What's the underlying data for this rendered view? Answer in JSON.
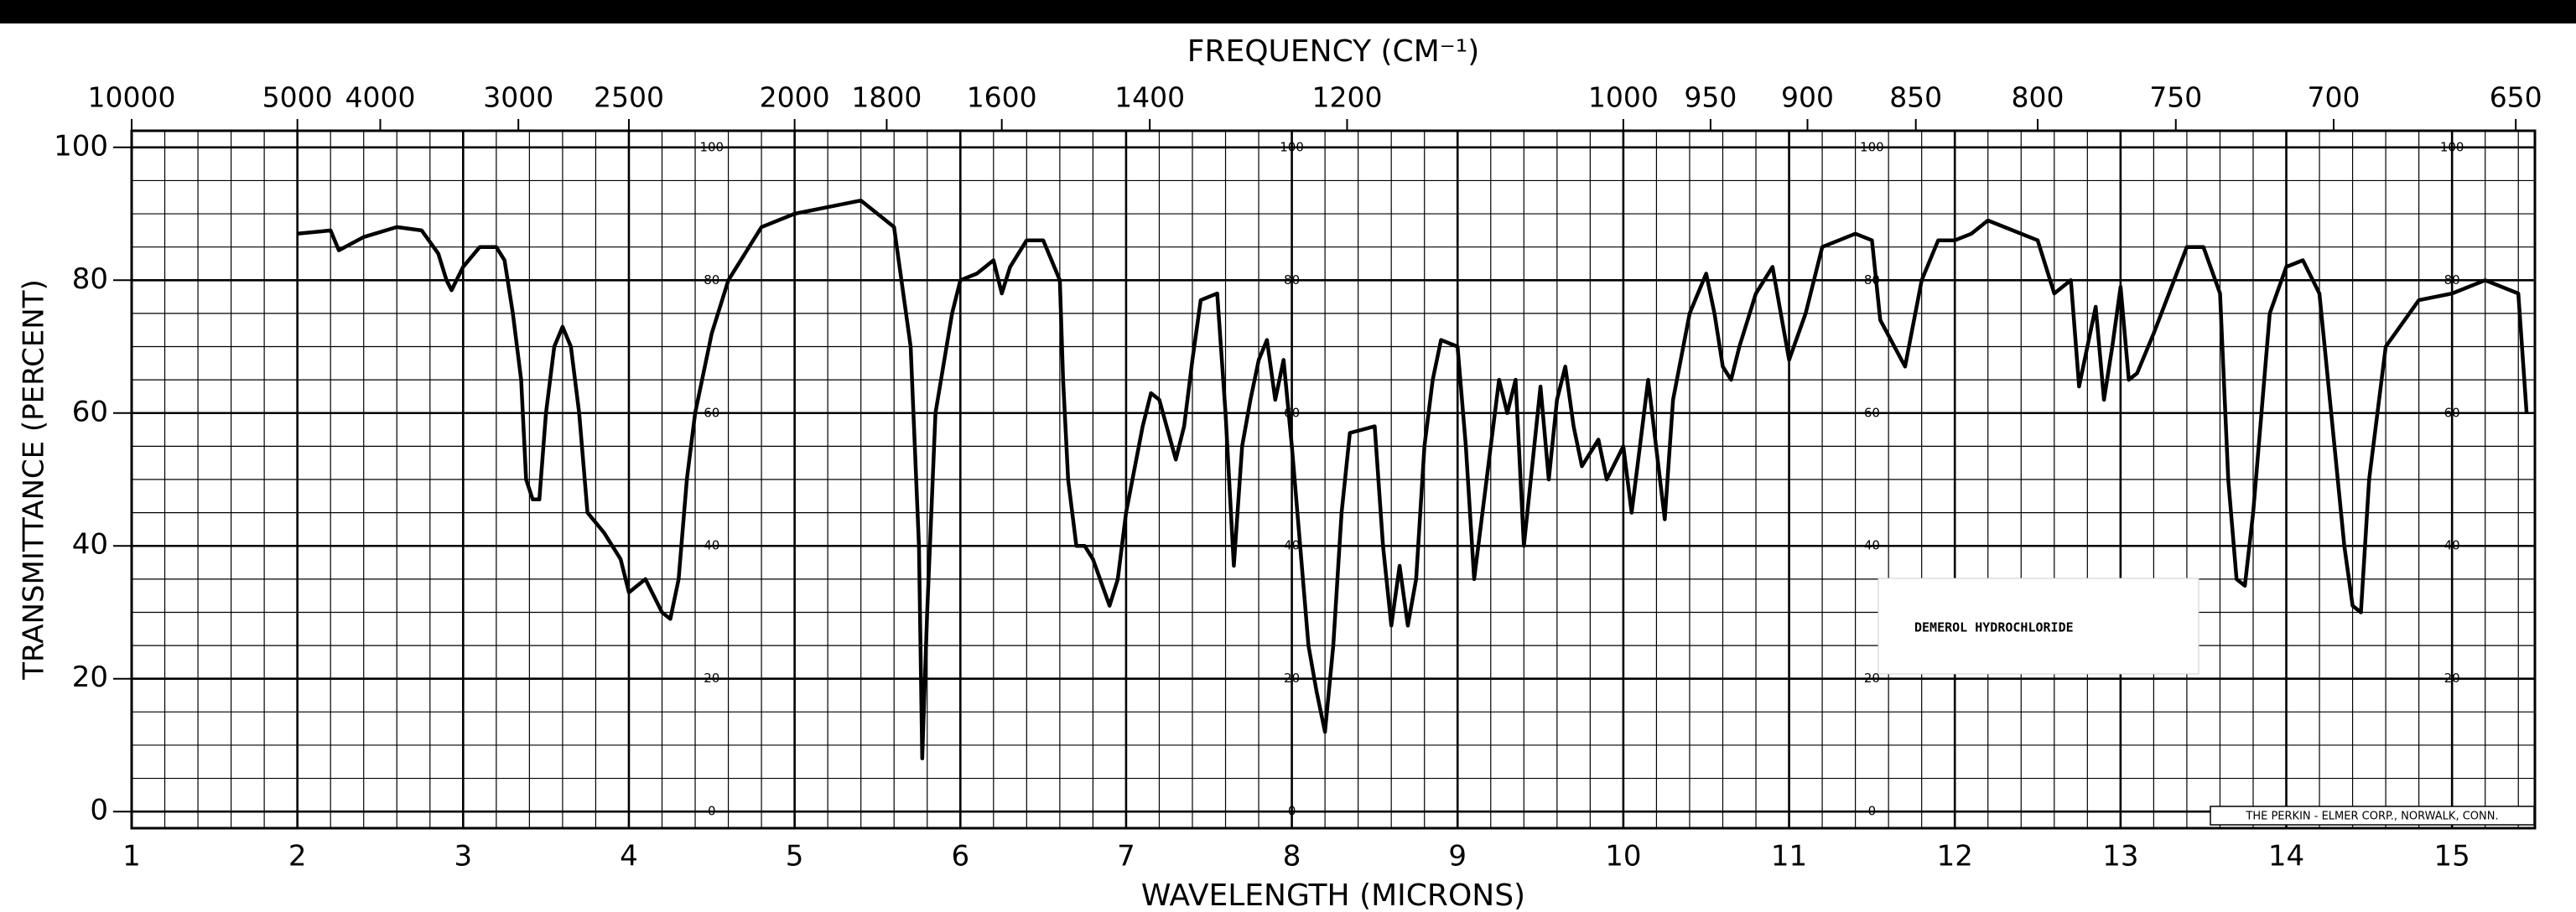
{
  "chart_data": {
    "type": "line",
    "title": "FREQUENCY (CM⁻¹)",
    "x_label": "WAVELENGTH (MICRONS)",
    "y_label": "TRANSMITTANCE (PERCENT)",
    "sample_label": "DEMEROL HYDROCHLORIDE",
    "footer": "THE PERKIN - ELMER CORP., NORWALK, CONN.",
    "color": "#000000",
    "grid": true,
    "xlim": [
      1,
      15.5
    ],
    "ylim": [
      -2.5,
      102.5
    ],
    "xticks": [
      1,
      2,
      3,
      4,
      5,
      6,
      7,
      8,
      9,
      10,
      11,
      12,
      13,
      14,
      15
    ],
    "yticks": [
      0,
      20,
      40,
      60,
      80,
      100
    ],
    "top_ticks": [
      10000,
      5000,
      4000,
      3000,
      2500,
      2000,
      1800,
      1600,
      1400,
      1200,
      1000,
      950,
      900,
      850,
      800,
      750,
      700,
      650
    ],
    "inner_scale": [
      100,
      80,
      60,
      40,
      20,
      0
    ],
    "x": [
      2.0,
      2.2,
      2.25,
      2.4,
      2.6,
      2.75,
      2.85,
      2.9,
      2.93,
      3.0,
      3.1,
      3.2,
      3.25,
      3.3,
      3.35,
      3.38,
      3.42,
      3.46,
      3.5,
      3.55,
      3.6,
      3.65,
      3.7,
      3.75,
      3.85,
      3.95,
      4.0,
      4.1,
      4.2,
      4.25,
      4.3,
      4.35,
      4.4,
      4.5,
      4.6,
      4.8,
      5.0,
      5.2,
      5.4,
      5.5,
      5.6,
      5.7,
      5.75,
      5.77,
      5.8,
      5.85,
      5.95,
      6.0,
      6.1,
      6.2,
      6.25,
      6.3,
      6.4,
      6.5,
      6.6,
      6.62,
      6.65,
      6.7,
      6.75,
      6.8,
      6.9,
      6.95,
      7.0,
      7.1,
      7.15,
      7.2,
      7.3,
      7.35,
      7.4,
      7.45,
      7.55,
      7.6,
      7.65,
      7.7,
      7.75,
      7.8,
      7.85,
      7.9,
      7.95,
      8.0,
      8.05,
      8.1,
      8.15,
      8.2,
      8.25,
      8.3,
      8.35,
      8.5,
      8.55,
      8.6,
      8.65,
      8.7,
      8.75,
      8.8,
      8.85,
      8.9,
      9.0,
      9.05,
      9.1,
      9.15,
      9.2,
      9.25,
      9.3,
      9.35,
      9.4,
      9.5,
      9.55,
      9.6,
      9.65,
      9.7,
      9.75,
      9.85,
      9.9,
      10.0,
      10.05,
      10.1,
      10.15,
      10.25,
      10.3,
      10.4,
      10.5,
      10.55,
      10.6,
      10.65,
      10.7,
      10.8,
      10.9,
      11.0,
      11.1,
      11.2,
      11.4,
      11.5,
      11.55,
      11.7,
      11.8,
      11.9,
      12.0,
      12.1,
      12.2,
      12.5,
      12.6,
      12.7,
      12.75,
      12.85,
      12.9,
      12.95,
      13.0,
      13.05,
      13.1,
      13.2,
      13.4,
      13.5,
      13.6,
      13.65,
      13.7,
      13.75,
      13.8,
      13.9,
      14.0,
      14.1,
      14.2,
      14.35,
      14.4,
      14.45,
      14.5,
      14.6,
      14.8,
      15.0,
      15.2,
      15.4,
      15.45
    ],
    "values": [
      87,
      87.5,
      84.5,
      86.5,
      88,
      87.5,
      84,
      80,
      78.5,
      82,
      85,
      85,
      83,
      75,
      65,
      50,
      47,
      47,
      60,
      70,
      73,
      70,
      60,
      45,
      42,
      38,
      33,
      35,
      30,
      29,
      35,
      50,
      60,
      72,
      80,
      88,
      90,
      91,
      92,
      90,
      88,
      70,
      40,
      8,
      30,
      60,
      75,
      80,
      81,
      83,
      78,
      82,
      86,
      86,
      80,
      65,
      50,
      40,
      40,
      38,
      31,
      35,
      45,
      58,
      63,
      62,
      53,
      58,
      68,
      77,
      78,
      60,
      37,
      55,
      62,
      68,
      71,
      62,
      68,
      55,
      40,
      25,
      18,
      12,
      25,
      45,
      57,
      58,
      40,
      28,
      37,
      28,
      35,
      55,
      65,
      71,
      70,
      55,
      35,
      45,
      55,
      65,
      60,
      65,
      40,
      64,
      50,
      62,
      67,
      58,
      52,
      56,
      50,
      55,
      45,
      55,
      65,
      44,
      62,
      75,
      81,
      75,
      67,
      65,
      70,
      78,
      82,
      68,
      75,
      85,
      87,
      86,
      74,
      67,
      80,
      86,
      86,
      87,
      89,
      86,
      78,
      80,
      64,
      76,
      62,
      70,
      79,
      65,
      66,
      72,
      85,
      85,
      78,
      50,
      35,
      34,
      45,
      75,
      82,
      83,
      78,
      40,
      31,
      30,
      50,
      70,
      77,
      78,
      80,
      78,
      60
    ]
  }
}
